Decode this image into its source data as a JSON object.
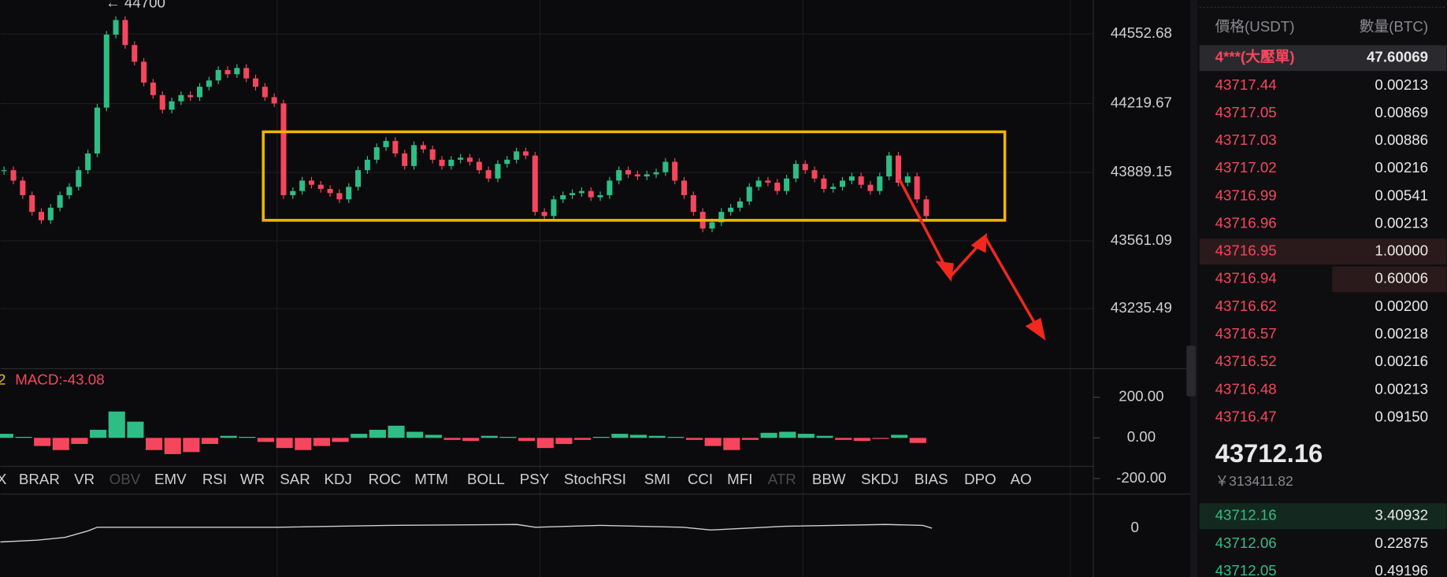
{
  "price_chart": {
    "type": "candlestick",
    "annotation": "← 44700",
    "ylim": [
      42948,
      44716
    ],
    "yticks": [
      44552.68,
      44219.67,
      43889.15,
      43561.09,
      43235.49
    ],
    "up_color": "#2ebd85",
    "down_color": "#f6465d",
    "closes": [
      43900,
      43850,
      43780,
      43700,
      43660,
      43720,
      43780,
      43820,
      43900,
      43980,
      44200,
      44550,
      44620,
      44500,
      44420,
      44320,
      44260,
      44190,
      44230,
      44260,
      44250,
      44300,
      44330,
      44380,
      44360,
      44390,
      44340,
      44300,
      44250,
      44220,
      43780,
      43800,
      43850,
      43830,
      43810,
      43790,
      43760,
      43820,
      43900,
      43950,
      44010,
      44040,
      43980,
      43920,
      44020,
      44000,
      43950,
      43920,
      43950,
      43960,
      43940,
      43900,
      43860,
      43930,
      43950,
      43990,
      43970,
      43700,
      43680,
      43760,
      43780,
      43790,
      43800,
      43770,
      43780,
      43850,
      43900,
      43880,
      43870,
      43880,
      43890,
      43940,
      43850,
      43780,
      43700,
      43620,
      43650,
      43700,
      43720,
      43750,
      43820,
      43850,
      43840,
      43800,
      43860,
      43930,
      43900,
      43860,
      43810,
      43820,
      43850,
      43870,
      43830,
      43800,
      43870,
      43970,
      43840,
      43870,
      43760,
      43680
    ]
  },
  "macd": {
    "type": "bar",
    "prefix": "2",
    "label": "MACD:-43.08",
    "ylim": [
      -136,
      341
    ],
    "yticks": [
      {
        "value": 200,
        "label": "200.00"
      },
      {
        "value": 0,
        "label": "0.00"
      },
      {
        "value": -200,
        "label": "-200.00"
      }
    ],
    "values": [
      20,
      5,
      -40,
      -60,
      -30,
      40,
      130,
      80,
      -60,
      -80,
      -70,
      -30,
      10,
      5,
      -20,
      -50,
      -60,
      -40,
      -20,
      20,
      40,
      60,
      30,
      15,
      -10,
      -15,
      10,
      5,
      -15,
      -50,
      -30,
      -10,
      5,
      20,
      15,
      10,
      5,
      -10,
      -40,
      -60,
      -10,
      25,
      30,
      20,
      10,
      -10,
      -15,
      -5,
      15,
      -25
    ]
  },
  "indicator_tabs": [
    {
      "label": "X",
      "enabled": true
    },
    {
      "label": "BRAR",
      "enabled": true
    },
    {
      "label": "VR",
      "enabled": true
    },
    {
      "label": "OBV",
      "enabled": false
    },
    {
      "label": "EMV",
      "enabled": true
    },
    {
      "label": "RSI",
      "enabled": true
    },
    {
      "label": "WR",
      "enabled": true
    },
    {
      "label": "SAR",
      "enabled": true
    },
    {
      "label": "KDJ",
      "enabled": true
    },
    {
      "label": "ROC",
      "enabled": true
    },
    {
      "label": "MTM",
      "enabled": true
    },
    {
      "label": "BOLL",
      "enabled": true
    },
    {
      "label": "PSY",
      "enabled": true
    },
    {
      "label": "StochRSI",
      "enabled": true
    },
    {
      "label": "SMI",
      "enabled": true
    },
    {
      "label": "CCI",
      "enabled": true
    },
    {
      "label": "MFI",
      "enabled": true
    },
    {
      "label": "ATR",
      "enabled": false
    },
    {
      "label": "BBW",
      "enabled": true
    },
    {
      "label": "SKDJ",
      "enabled": true
    },
    {
      "label": "BIAS",
      "enabled": true
    },
    {
      "label": "DPO",
      "enabled": true
    },
    {
      "label": "AO",
      "enabled": true
    }
  ],
  "third_pane": {
    "ytick": 0
  },
  "order_book": {
    "headers": [
      "價格(USDT)",
      "數量(BTC)"
    ],
    "big_order": {
      "price": "4***(大壓單)",
      "amount": "47.60069"
    },
    "asks": [
      [
        "43717.44",
        "0.00213"
      ],
      [
        "43717.05",
        "0.00869"
      ],
      [
        "43717.03",
        "0.00886"
      ],
      [
        "43717.02",
        "0.00216"
      ],
      [
        "43716.99",
        "0.00541"
      ],
      [
        "43716.96",
        "0.00213"
      ],
      [
        "43716.95",
        "1.00000"
      ],
      [
        "43716.94",
        "0.60006"
      ],
      [
        "43716.62",
        "0.00200"
      ],
      [
        "43716.57",
        "0.00218"
      ],
      [
        "43716.52",
        "0.00216"
      ],
      [
        "43716.48",
        "0.00213"
      ],
      [
        "43716.47",
        "0.09150"
      ]
    ],
    "last_price": "43712.16",
    "cny": "￥313411.82",
    "bids": [
      [
        "43712.16",
        "3.40932"
      ],
      [
        "43712.06",
        "0.22875"
      ],
      [
        "43712.05",
        "0.49196"
      ]
    ]
  }
}
